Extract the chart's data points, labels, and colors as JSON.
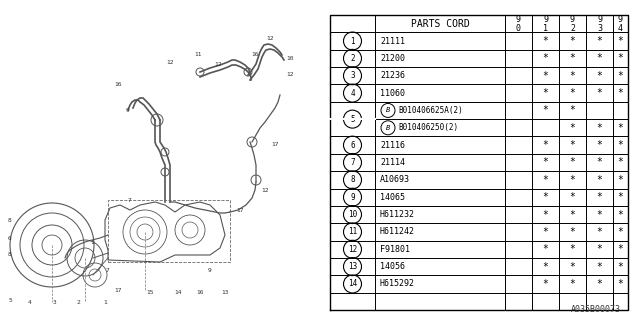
{
  "diagram_code": "A035B00073",
  "bg_color": "#ffffff",
  "rows": [
    {
      "num": "1",
      "part": "21111",
      "star90": false,
      "star91": true,
      "star92": true,
      "star93": true,
      "star94": true
    },
    {
      "num": "2",
      "part": "21200",
      "star90": false,
      "star91": true,
      "star92": true,
      "star93": true,
      "star94": true
    },
    {
      "num": "3",
      "part": "21236",
      "star90": false,
      "star91": true,
      "star92": true,
      "star93": true,
      "star94": true
    },
    {
      "num": "4",
      "part": "11060",
      "star90": false,
      "star91": true,
      "star92": true,
      "star93": true,
      "star94": true
    },
    {
      "num": "5a",
      "part": "B010406625A(2)",
      "star90": false,
      "star91": true,
      "star92": true,
      "star93": false,
      "star94": false,
      "sub_b": true,
      "merged_num": "5"
    },
    {
      "num": "5b",
      "part": "B010406250(2)",
      "star90": false,
      "star91": false,
      "star92": true,
      "star93": true,
      "star94": true,
      "sub_b": true,
      "merged_num": null
    },
    {
      "num": "6",
      "part": "21116",
      "star90": false,
      "star91": true,
      "star92": true,
      "star93": true,
      "star94": true
    },
    {
      "num": "7",
      "part": "21114",
      "star90": false,
      "star91": true,
      "star92": true,
      "star93": true,
      "star94": true
    },
    {
      "num": "8",
      "part": "A10693",
      "star90": false,
      "star91": true,
      "star92": true,
      "star93": true,
      "star94": true
    },
    {
      "num": "9",
      "part": "14065",
      "star90": false,
      "star91": true,
      "star92": true,
      "star93": true,
      "star94": true
    },
    {
      "num": "10",
      "part": "H611232",
      "star90": false,
      "star91": true,
      "star92": true,
      "star93": true,
      "star94": true
    },
    {
      "num": "11",
      "part": "H611242",
      "star90": false,
      "star91": true,
      "star92": true,
      "star93": true,
      "star94": true
    },
    {
      "num": "12",
      "part": "F91801",
      "star90": false,
      "star91": true,
      "star92": true,
      "star93": true,
      "star94": true
    },
    {
      "num": "13",
      "part": "14056",
      "star90": false,
      "star91": true,
      "star92": true,
      "star93": true,
      "star94": true
    },
    {
      "num": "14",
      "part": "H615292",
      "star90": false,
      "star91": true,
      "star92": true,
      "star93": true,
      "star94": true
    }
  ]
}
